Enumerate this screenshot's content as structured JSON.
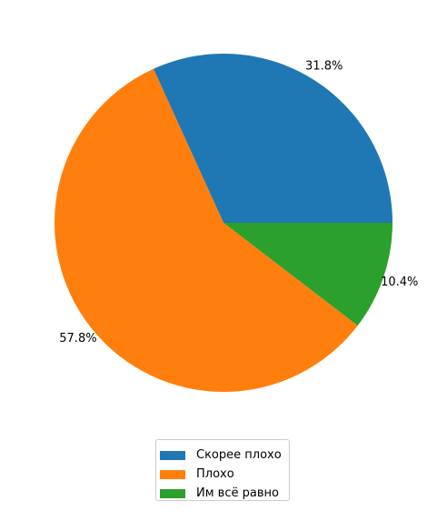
{
  "chart_data": {
    "type": "pie",
    "categories": [
      "Скорее плохо",
      "Плохо",
      "Им всё равно"
    ],
    "values": [
      31.8,
      57.8,
      10.4
    ],
    "labels": [
      "31.8%",
      "57.8%",
      "10.4%"
    ],
    "colors": [
      "#1f77b4",
      "#ff7f0e",
      "#2ca02c"
    ],
    "title": "",
    "start_angle_deg": 0,
    "direction": "counterclockwise",
    "legend_position": "bottom-center"
  },
  "legend": {
    "items": [
      {
        "label": "Скорее плохо",
        "color": "#1f77b4"
      },
      {
        "label": "Плохо",
        "color": "#ff7f0e"
      },
      {
        "label": "Им всё равно",
        "color": "#2ca02c"
      }
    ]
  }
}
